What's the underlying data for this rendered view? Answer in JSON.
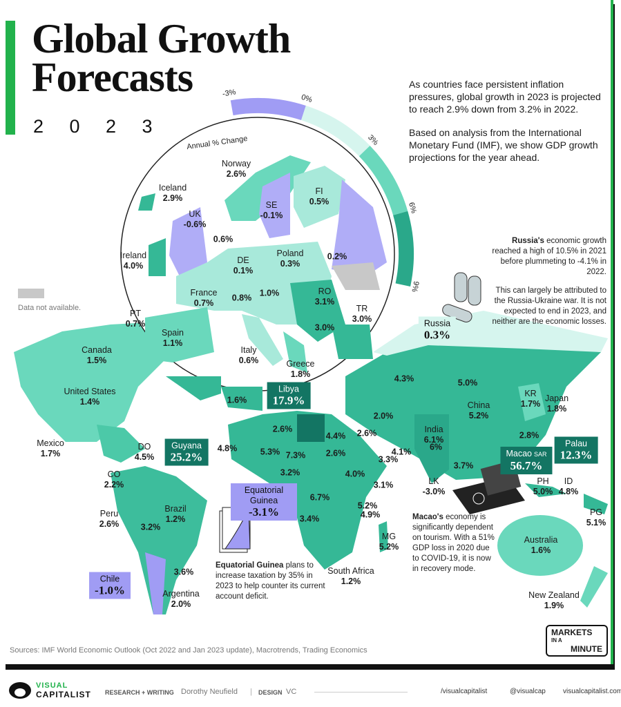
{
  "header": {
    "title": "Global Growth Forecasts",
    "year": "2 0 2 3"
  },
  "intro": [
    "As countries face persistent inflation pressures, global growth in 2023 is projected to reach 2.9% down from 3.2% in 2022.",
    "Based on analysis from the International Monetary Fund (IMF), we show GDP growth projections for the year ahead."
  ],
  "legend": {
    "title": "Annual % Change",
    "stops": [
      "-3%",
      "0%",
      "3%",
      "6%",
      "9%"
    ],
    "no_data": "Data not available."
  },
  "labels": [
    {
      "name": "Norway",
      "value": "2.6%"
    },
    {
      "name": "Iceland",
      "value": "2.9%"
    },
    {
      "name": "FI",
      "value": "0.5%"
    },
    {
      "name": "UK",
      "value": "-0.6%"
    },
    {
      "name": "SE",
      "value": "-0.1%"
    },
    {
      "value": "0.6%"
    },
    {
      "name": "Ireland",
      "value": "4.0%"
    },
    {
      "name": "DE",
      "value": "0.1%"
    },
    {
      "name": "Poland",
      "value": "0.3%"
    },
    {
      "value": "0.2%"
    },
    {
      "name": "France",
      "value": "0.7%"
    },
    {
      "value": "0.8%"
    },
    {
      "value": "1.0%"
    },
    {
      "name": "RO",
      "value": "3.1%"
    },
    {
      "name": "PT",
      "value": "0.7%"
    },
    {
      "value": "3.0%"
    },
    {
      "name": "TR",
      "value": "3.0%"
    },
    {
      "name": "Spain",
      "value": "1.1%"
    },
    {
      "name": "Italy",
      "value": "0.6%"
    },
    {
      "name": "Greece",
      "value": "1.8%"
    },
    {
      "name": "Canada",
      "value": "1.5%"
    },
    {
      "name": "United States",
      "value": "1.4%"
    },
    {
      "name": "Libya",
      "value": "17.9%"
    },
    {
      "value": "1.6%"
    },
    {
      "name": "Russia",
      "value": "0.3%"
    },
    {
      "value": "4.3%"
    },
    {
      "value": "5.0%"
    },
    {
      "name": "China",
      "value": "5.2%"
    },
    {
      "name": "KR",
      "value": "1.7%"
    },
    {
      "name": "Japan",
      "value": "1.8%"
    },
    {
      "value": "2.0%"
    },
    {
      "value": "2.6%"
    },
    {
      "name": "India",
      "value": "6.1%"
    },
    {
      "value": "2.8%"
    },
    {
      "name": "Palau",
      "value": "12.3%"
    },
    {
      "name": "Mexico",
      "value": "1.7%"
    },
    {
      "name": "DO",
      "value": "4.5%"
    },
    {
      "name": "Guyana",
      "value": "25.2%"
    },
    {
      "value": "2.6%"
    },
    {
      "value": "4.4%"
    },
    {
      "value": "4.8%"
    },
    {
      "value": "5.3%"
    },
    {
      "value": "7.3%"
    },
    {
      "value": "2.6%"
    },
    {
      "value": "4.1%"
    },
    {
      "value": "6%"
    },
    {
      "value": "3.3%"
    },
    {
      "name": "Macao",
      "suffix": "SAR",
      "value": "56.7%"
    },
    {
      "value": "3.7%"
    },
    {
      "value": "3.2%"
    },
    {
      "value": "4.0%"
    },
    {
      "name": "CO",
      "value": "2.2%"
    },
    {
      "name": "LK",
      "value": "-3.0%"
    },
    {
      "name": "PH",
      "value": "5.0%"
    },
    {
      "name": "ID",
      "value": "4.8%"
    },
    {
      "value": "3.1%"
    },
    {
      "name": "Equatorial Guinea",
      "value": "-3.1%"
    },
    {
      "name": "Brazil",
      "value": "1.2%"
    },
    {
      "value": "6.7%"
    },
    {
      "value": "5.2%"
    },
    {
      "value": "4.9%"
    },
    {
      "name": "Peru",
      "value": "2.6%"
    },
    {
      "value": "3.2%"
    },
    {
      "value": "3.4%"
    },
    {
      "name": "MG",
      "value": "5.2%"
    },
    {
      "name": "PG",
      "value": "5.1%"
    },
    {
      "name": "Australia",
      "value": "1.6%"
    },
    {
      "value": "3.6%"
    },
    {
      "name": "South Africa",
      "value": "1.2%"
    },
    {
      "name": "Chile",
      "value": "-1.0%"
    },
    {
      "name": "Argentina",
      "value": "2.0%"
    },
    {
      "name": "New Zealand",
      "value": "1.9%"
    }
  ],
  "annotations": [
    {
      "bold": "Russia's",
      "text": "economic growth reached a high of 10.5% in 2021 before plummeting to -4.1% in 2022.",
      "more": "This can largely be attributed to the Russia-Ukraine war. It is not expected to end in 2023, and neither are the economic losses."
    },
    {
      "bold": "Equatorial Guinea",
      "text": "plans to increase taxation by 35% in 2023 to help counter its current account deficit."
    },
    {
      "bold": "Macao's",
      "text": "economy is significantly dependent on tourism. With a 51% GDP loss in 2020 due to COVID-19, it is now in recovery mode."
    }
  ],
  "sources": "Sources: IMF World Economic Outlook (Oct 2022 and Jan 2023 update), Macrotrends, Trading Economics",
  "badge": [
    "MARKETS",
    "IN A",
    "MINUTE"
  ],
  "footer": {
    "brand": [
      "VISUAL",
      "CAPITALIST"
    ],
    "research_label": "RESEARCH + WRITING",
    "author": "Dorothy Neufield",
    "separator": "|",
    "design_label": "DESIGN",
    "designer": "VC",
    "facebook": "/visualcapitalist",
    "instagram": "@visualcap",
    "website": "visualcapitalist.com"
  }
}
